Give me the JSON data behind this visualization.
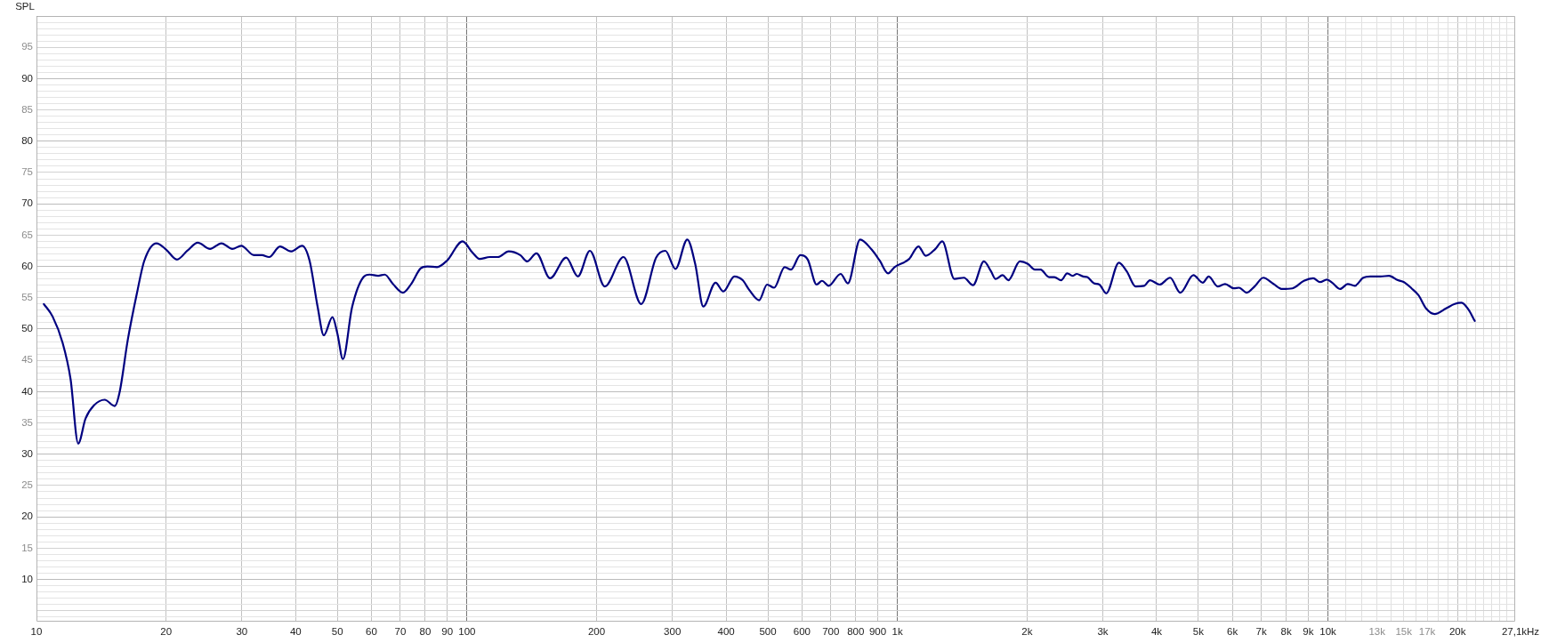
{
  "chart_data": {
    "type": "line",
    "ylabel": "SPL",
    "xlabel": "Hz",
    "log": "x",
    "grid": true,
    "marker": "none",
    "line_style": "solid",
    "xlim": [
      10,
      27100
    ],
    "ylim": [
      3.4,
      100
    ],
    "xticks": [
      10,
      20,
      30,
      40,
      50,
      60,
      70,
      80,
      90,
      100,
      200,
      300,
      400,
      500,
      600,
      700,
      800,
      900,
      {
        "value": 1000,
        "label": "1k"
      },
      {
        "value": 2000,
        "label": "2k"
      },
      {
        "value": 3000,
        "label": "3k"
      },
      {
        "value": 4000,
        "label": "4k"
      },
      {
        "value": 5000,
        "label": "5k"
      },
      {
        "value": 6000,
        "label": "6k"
      },
      {
        "value": 7000,
        "label": "7k"
      },
      {
        "value": 8000,
        "label": "8k"
      },
      {
        "value": 9000,
        "label": "9k"
      },
      {
        "value": 10000,
        "label": "10k"
      },
      {
        "value": 11000,
        "label": null
      },
      {
        "value": 12000,
        "label": null
      },
      {
        "value": 13000,
        "label": "13k"
      },
      {
        "value": 14000,
        "label": null
      },
      {
        "value": 15000,
        "label": "15k"
      },
      {
        "value": 16000,
        "label": null
      },
      {
        "value": 17000,
        "label": "17k"
      },
      {
        "value": 18000,
        "label": null
      },
      {
        "value": 19000,
        "label": null
      },
      {
        "value": 20000,
        "label": "20k"
      },
      {
        "value": 21000,
        "label": null
      },
      {
        "value": 22000,
        "label": null
      },
      {
        "value": 23000,
        "label": null
      },
      {
        "value": 24000,
        "label": null
      },
      {
        "value": 25000,
        "label": null
      },
      {
        "value": 26000,
        "label": null
      },
      {
        "value": 27100,
        "label": "27,1k"
      }
    ],
    "yticks": [
      {
        "value": 4,
        "label": null
      },
      {
        "value": 5,
        "label": null
      },
      {
        "value": 6,
        "label": null
      },
      {
        "value": 7,
        "label": null
      },
      {
        "value": 8,
        "label": null
      },
      {
        "value": 9,
        "label": null
      },
      10,
      {
        "value": 11,
        "label": null
      },
      {
        "value": 12,
        "label": null
      },
      {
        "value": 13,
        "label": null
      },
      {
        "value": 14,
        "label": null
      },
      15,
      {
        "value": 16,
        "label": null
      },
      {
        "value": 17,
        "label": null
      },
      {
        "value": 18,
        "label": null
      },
      {
        "value": 19,
        "label": null
      },
      20,
      {
        "value": 21,
        "label": null
      },
      {
        "value": 22,
        "label": null
      },
      {
        "value": 23,
        "label": null
      },
      {
        "value": 24,
        "label": null
      },
      25,
      {
        "value": 26,
        "label": null
      },
      {
        "value": 27,
        "label": null
      },
      {
        "value": 28,
        "label": null
      },
      {
        "value": 29,
        "label": null
      },
      30,
      {
        "value": 31,
        "label": null
      },
      {
        "value": 32,
        "label": null
      },
      {
        "value": 33,
        "label": null
      },
      {
        "value": 34,
        "label": null
      },
      35,
      {
        "value": 36,
        "label": null
      },
      {
        "value": 37,
        "label": null
      },
      {
        "value": 38,
        "label": null
      },
      {
        "value": 39,
        "label": null
      },
      40,
      {
        "value": 41,
        "label": null
      },
      {
        "value": 42,
        "label": null
      },
      {
        "value": 43,
        "label": null
      },
      {
        "value": 44,
        "label": null
      },
      45,
      {
        "value": 46,
        "label": null
      },
      {
        "value": 47,
        "label": null
      },
      {
        "value": 48,
        "label": null
      },
      {
        "value": 49,
        "label": null
      },
      50,
      {
        "value": 51,
        "label": null
      },
      {
        "value": 52,
        "label": null
      },
      {
        "value": 53,
        "label": null
      },
      {
        "value": 54,
        "label": null
      },
      55,
      {
        "value": 56,
        "label": null
      },
      {
        "value": 57,
        "label": null
      },
      {
        "value": 58,
        "label": null
      },
      {
        "value": 59,
        "label": null
      },
      60,
      {
        "value": 61,
        "label": null
      },
      {
        "value": 62,
        "label": null
      },
      {
        "value": 63,
        "label": null
      },
      {
        "value": 64,
        "label": null
      },
      65,
      {
        "value": 66,
        "label": null
      },
      {
        "value": 67,
        "label": null
      },
      {
        "value": 68,
        "label": null
      },
      {
        "value": 69,
        "label": null
      },
      70,
      {
        "value": 71,
        "label": null
      },
      {
        "value": 72,
        "label": null
      },
      {
        "value": 73,
        "label": null
      },
      {
        "value": 74,
        "label": null
      },
      75,
      {
        "value": 76,
        "label": null
      },
      {
        "value": 77,
        "label": null
      },
      {
        "value": 78,
        "label": null
      },
      {
        "value": 79,
        "label": null
      },
      80,
      {
        "value": 81,
        "label": null
      },
      {
        "value": 82,
        "label": null
      },
      {
        "value": 83,
        "label": null
      },
      {
        "value": 84,
        "label": null
      },
      85,
      {
        "value": 86,
        "label": null
      },
      {
        "value": 87,
        "label": null
      },
      {
        "value": 88,
        "label": null
      },
      {
        "value": 89,
        "label": null
      },
      90,
      {
        "value": 91,
        "label": null
      },
      {
        "value": 92,
        "label": null
      },
      {
        "value": 93,
        "label": null
      },
      {
        "value": 94,
        "label": null
      },
      95,
      {
        "value": 96,
        "label": null
      },
      {
        "value": 97,
        "label": null
      },
      {
        "value": 98,
        "label": null
      },
      {
        "value": 99,
        "label": null
      }
    ],
    "x": [
      10.4,
      10.9,
      11.5,
      12.0,
      12.5,
      13.0,
      13.6,
      14.4,
      15.2,
      15.6,
      16.3,
      17.1,
      17.8,
      19.0,
      20.0,
      21.2,
      22.4,
      23.7,
      25.3,
      26.9,
      28.5,
      29.9,
      32.0,
      33.4,
      34.7,
      36.8,
      39.0,
      41.4,
      43.1,
      45.0,
      46.5,
      48.7,
      50.0,
      51.5,
      54.1,
      57.5,
      59.4,
      62.2,
      64.4,
      67.3,
      71.0,
      74.2,
      78.1,
      80.9,
      85.2,
      89.8,
      97.7,
      103,
      107,
      113,
      118,
      125,
      133,
      138,
      145,
      156,
      170,
      181,
      193,
      209,
      231,
      254,
      275,
      289,
      305,
      325,
      339,
      354,
      378,
      394,
      418,
      437,
      452,
      477,
      498,
      517,
      547,
      566,
      595,
      619,
      649,
      668,
      692,
      738,
      767,
      819,
      871,
      910,
      951,
      985,
      1065,
      1119,
      1163,
      1225,
      1271,
      1356,
      1427,
      1498,
      1588,
      1650,
      1690,
      1755,
      1810,
      1925,
      2010,
      2085,
      2150,
      2250,
      2315,
      2400,
      2480,
      2550,
      2610,
      2700,
      2760,
      2860,
      2945,
      3055,
      3270,
      3410,
      3575,
      3745,
      3860,
      4065,
      4300,
      4540,
      4870,
      5120,
      5285,
      5545,
      5770,
      6045,
      6215,
      6475,
      6755,
      7075,
      7475,
      7830,
      8275,
      8795,
      9245,
      9590,
      9950,
      10230,
      10680,
      11120,
      11540,
      12080,
      12540,
      13250,
      13870,
      14530,
      15020,
      15640,
      16230,
      16900,
      17700,
      18810,
      19700,
      20440,
      21210,
      21930
    ],
    "series": [
      {
        "color": "#000080",
        "values": [
          54.0,
          52.0,
          47.8,
          42.0,
          31.7,
          35.7,
          37.8,
          38.7,
          37.7,
          39.9,
          48.3,
          55.6,
          60.9,
          63.7,
          62.7,
          61.1,
          62.5,
          63.8,
          62.8,
          63.7,
          62.8,
          63.3,
          61.8,
          61.8,
          61.5,
          63.2,
          62.4,
          63.3,
          60.9,
          53.5,
          49.0,
          51.9,
          49.3,
          45.2,
          53.5,
          58.3,
          58.7,
          58.5,
          58.7,
          57.2,
          55.8,
          57.2,
          59.7,
          60.0,
          59.9,
          60.9,
          64.0,
          62.2,
          61.2,
          61.5,
          61.5,
          62.4,
          61.8,
          60.8,
          62.1,
          58.1,
          61.4,
          58.4,
          62.5,
          56.8,
          61.5,
          54.0,
          61.4,
          62.5,
          59.6,
          64.3,
          60.4,
          53.6,
          57.4,
          56.0,
          58.4,
          57.8,
          56.3,
          54.6,
          57.1,
          56.6,
          59.9,
          59.5,
          61.8,
          61.1,
          57.1,
          57.7,
          56.9,
          58.8,
          57.3,
          64.3,
          62.7,
          60.9,
          58.9,
          59.9,
          61.2,
          63.2,
          61.7,
          62.8,
          64.0,
          58.0,
          58.2,
          57.0,
          60.8,
          59.2,
          58.0,
          58.6,
          57.8,
          60.8,
          60.4,
          59.5,
          59.5,
          58.3,
          58.3,
          57.8,
          58.9,
          58.5,
          58.8,
          58.4,
          58.3,
          57.3,
          57.1,
          55.7,
          60.6,
          59.2,
          56.8,
          56.9,
          57.8,
          57.1,
          58.2,
          55.8,
          58.6,
          57.4,
          58.4,
          56.8,
          57.2,
          56.5,
          56.6,
          55.8,
          56.8,
          58.2,
          57.2,
          56.4,
          56.5,
          57.7,
          58.1,
          57.5,
          57.9,
          57.4,
          56.4,
          57.2,
          56.9,
          58.2,
          58.4,
          58.4,
          58.5,
          57.8,
          57.5,
          56.5,
          55.4,
          53.3,
          52.4,
          53.3,
          54.0,
          54.2,
          53.1,
          51.3
        ]
      }
    ]
  }
}
